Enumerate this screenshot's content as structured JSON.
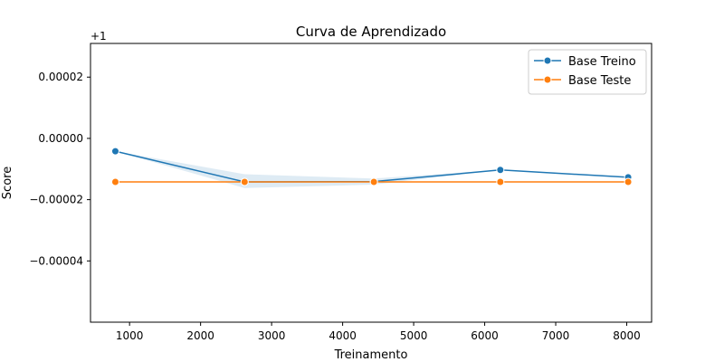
{
  "chart_data": {
    "type": "line",
    "title": "Curva de Aprendizado",
    "xlabel": "Treinamento",
    "ylabel": "Score",
    "offset_label": "+1",
    "xlim": [
      450,
      8350
    ],
    "ylim": [
      -6e-05,
      3.1e-05
    ],
    "xticks": [
      1000,
      2000,
      3000,
      4000,
      5000,
      6000,
      7000,
      8000
    ],
    "xtick_labels": [
      "1000",
      "2000",
      "3000",
      "4000",
      "5000",
      "6000",
      "7000",
      "8000"
    ],
    "yticks": [
      2e-05,
      0.0,
      -2e-05,
      -4e-05
    ],
    "ytick_labels": [
      "0.00002",
      "0.00000",
      "−0.00002",
      "−0.00004"
    ],
    "grid": false,
    "legend_position": "top-right",
    "series": [
      {
        "name": "Base Treino",
        "color": "#1f77b4",
        "x": [
          800,
          2620,
          4440,
          6220,
          8020
        ],
        "y": [
          -4.2e-06,
          -1.42e-05,
          -1.41e-05,
          -1.03e-05,
          -1.27e-05
        ],
        "band_low": [
          -4.2e-06,
          -1.62e-05,
          -1.51e-05,
          -1.03e-05,
          -1.27e-05
        ],
        "band_high": [
          -4.2e-06,
          -1.17e-05,
          -1.31e-05,
          -1.03e-05,
          -1.27e-05
        ]
      },
      {
        "name": "Base Teste",
        "color": "#ff7f0e",
        "x": [
          800,
          2620,
          4440,
          6220,
          8020
        ],
        "y": [
          -1.42e-05,
          -1.42e-05,
          -1.42e-05,
          -1.42e-05,
          -1.42e-05
        ]
      }
    ]
  }
}
